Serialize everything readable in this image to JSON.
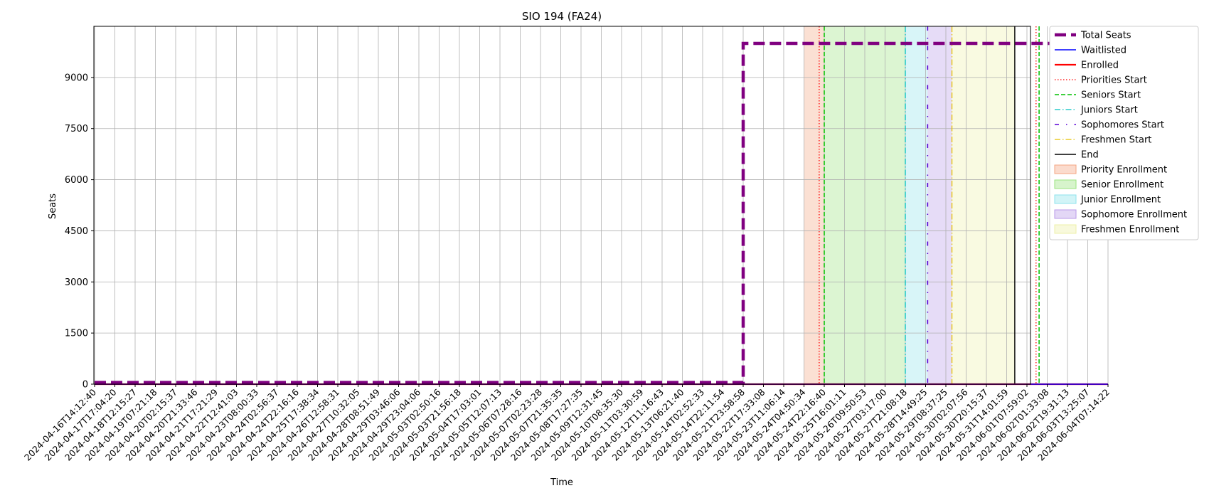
{
  "chart_data": {
    "type": "line",
    "title": "SIO 194 (FA24)",
    "xlabel": "Time",
    "ylabel": "Seats",
    "ylim": [
      0,
      10500
    ],
    "yticks": [
      0,
      1500,
      3000,
      4500,
      6000,
      7500,
      9000
    ],
    "grid": true,
    "legend_position": "outside-right",
    "x_categories": [
      "2024-04-16T14:12:40",
      "2024-04-17T17:04:20",
      "2024-04-18T12:15:27",
      "2024-04-19T07:21:18",
      "2024-04-20T02:15:37",
      "2024-04-20T21:33:46",
      "2024-04-21T17:21:29",
      "2024-04-22T12:41:03",
      "2024-04-23T08:00:33",
      "2024-04-24T02:56:37",
      "2024-04-24T22:16:16",
      "2024-04-25T17:38:34",
      "2024-04-26T12:58:31",
      "2024-04-27T10:32:05",
      "2024-04-28T08:51:49",
      "2024-04-29T03:46:06",
      "2024-04-29T23:04:06",
      "2024-05-03T02:50:16",
      "2024-05-03T21:56:18",
      "2024-05-04T17:03:01",
      "2024-05-05T12:07:13",
      "2024-05-06T07:28:16",
      "2024-05-07T02:23:28",
      "2024-05-07T21:35:35",
      "2024-05-08T17:27:35",
      "2024-05-09T12:31:45",
      "2024-05-10T08:35:30",
      "2024-05-11T03:30:59",
      "2024-05-12T11:16:43",
      "2024-05-13T06:21:40",
      "2024-05-14T02:52:33",
      "2024-05-14T22:11:54",
      "2024-05-21T23:58:58",
      "2024-05-22T17:33:08",
      "2024-05-23T11:06:14",
      "2024-05-24T04:50:34",
      "2024-05-24T22:16:40",
      "2024-05-25T16:01:11",
      "2024-05-26T09:50:53",
      "2024-05-27T03:17:00",
      "2024-05-27T21:08:18",
      "2024-05-28T14:49:25",
      "2024-05-29T08:37:25",
      "2024-05-30T02:07:56",
      "2024-05-30T20:15:37",
      "2024-05-31T14:01:59",
      "2024-06-01T07:59:02",
      "2024-06-02T01:33:08",
      "2024-06-02T19:31:13",
      "2024-06-03T13:25:07",
      "2024-06-04T07:14:22"
    ],
    "series": [
      {
        "name": "Total Seats",
        "color": "#800080",
        "style": "dashed-thick",
        "points": [
          {
            "x": "2024-04-16T14:12:40",
            "y": 50
          },
          {
            "x": "2024-05-21T23:58:58",
            "y": 50
          },
          {
            "x": "2024-05-21T23:58:58",
            "y": 10000
          },
          {
            "x": "2024-06-04T07:14:22",
            "y": 10000
          }
        ]
      },
      {
        "name": "Waitlisted",
        "color": "#0000ff",
        "style": "solid",
        "points": [
          {
            "x": "2024-04-16T14:12:40",
            "y": 0
          },
          {
            "x": "2024-06-04T07:14:22",
            "y": 0
          }
        ]
      },
      {
        "name": "Enrolled",
        "color": "#ff0000",
        "style": "solid-thick",
        "points": [
          {
            "x": "2024-04-16T14:12:40",
            "y": 0
          },
          {
            "x": "2024-06-04T07:14:22",
            "y": 0
          }
        ]
      }
    ],
    "milestones": [
      {
        "name": "Priorities Start",
        "color": "#ff0000",
        "style": "dotted",
        "x": "2024-05-24T04:50:34",
        "offset": 0.75
      },
      {
        "name": "Seniors Start",
        "color": "#00c000",
        "style": "dashed",
        "x": "2024-05-24T04:50:34",
        "offset": 1.0
      },
      {
        "name": "Juniors Start",
        "color": "#00bfbf",
        "style": "dashdot",
        "x": "2024-05-27T21:08:18",
        "offset": 0.0
      },
      {
        "name": "Sophomores Start",
        "color": "#5a00d6",
        "style": "loosedashdot",
        "x": "2024-05-28T14:49:25",
        "offset": 0.1
      },
      {
        "name": "Freshmen Start",
        "color": "#e5c000",
        "style": "dashdot",
        "x": "2024-05-29T08:37:25",
        "offset": 0.3
      },
      {
        "name": "End",
        "color": "#000000",
        "style": "solid",
        "x": "2024-05-31T14:01:59",
        "offset": 0.4
      }
    ],
    "extra_lines": [
      {
        "color": "#ff0000",
        "style": "dotted",
        "x": "2024-06-01T07:59:02",
        "offset": 0.45
      },
      {
        "color": "#00c000",
        "style": "dashed",
        "x": "2024-06-01T07:59:02",
        "offset": 0.6
      }
    ],
    "spans": [
      {
        "name": "Priority Enrollment",
        "color": "#f4a582",
        "start": "2024-05-24T04:50:34",
        "start_offset": 0.0,
        "end": "2024-05-24T04:50:34",
        "end_offset": 1.0
      },
      {
        "name": "Senior Enrollment",
        "color": "#9be37f",
        "start": "2024-05-24T04:50:34",
        "start_offset": 1.0,
        "end": "2024-05-27T21:08:18",
        "end_offset": 0.0
      },
      {
        "name": "Junior Enrollment",
        "color": "#8fe3ec",
        "start": "2024-05-27T21:08:18",
        "start_offset": 0.0,
        "end": "2024-05-28T14:49:25",
        "end_offset": 0.1
      },
      {
        "name": "Sophomore Enrollment",
        "color": "#b89ae8",
        "start": "2024-05-28T14:49:25",
        "start_offset": 0.1,
        "end": "2024-05-29T08:37:25",
        "end_offset": 0.3
      },
      {
        "name": "Freshmen Enrollment",
        "color": "#eef0a8",
        "start": "2024-05-29T08:37:25",
        "start_offset": 0.3,
        "end": "2024-05-31T14:01:59",
        "end_offset": 0.4
      }
    ],
    "legend": [
      {
        "label": "Total Seats",
        "kind": "line",
        "color": "#800080",
        "style": "dashed-thick"
      },
      {
        "label": "Waitlisted",
        "kind": "line",
        "color": "#0000ff",
        "style": "solid"
      },
      {
        "label": "Enrolled",
        "kind": "line",
        "color": "#ff0000",
        "style": "solid-thick"
      },
      {
        "label": "Priorities Start",
        "kind": "line",
        "color": "#ff0000",
        "style": "dotted"
      },
      {
        "label": "Seniors Start",
        "kind": "line",
        "color": "#00c000",
        "style": "dashed"
      },
      {
        "label": "Juniors Start",
        "kind": "line",
        "color": "#00bfbf",
        "style": "dashdot"
      },
      {
        "label": "Sophomores Start",
        "kind": "line",
        "color": "#5a00d6",
        "style": "loosedashdot"
      },
      {
        "label": "Freshmen Start",
        "kind": "line",
        "color": "#e5c000",
        "style": "dashdot"
      },
      {
        "label": "End",
        "kind": "line",
        "color": "#000000",
        "style": "solid"
      },
      {
        "label": "Priority Enrollment",
        "kind": "patch",
        "color": "#f4a582"
      },
      {
        "label": "Senior Enrollment",
        "kind": "patch",
        "color": "#9be37f"
      },
      {
        "label": "Junior Enrollment",
        "kind": "patch",
        "color": "#8fe3ec"
      },
      {
        "label": "Sophomore Enrollment",
        "kind": "patch",
        "color": "#b89ae8"
      },
      {
        "label": "Freshmen Enrollment",
        "kind": "patch",
        "color": "#eef0a8"
      }
    ]
  }
}
